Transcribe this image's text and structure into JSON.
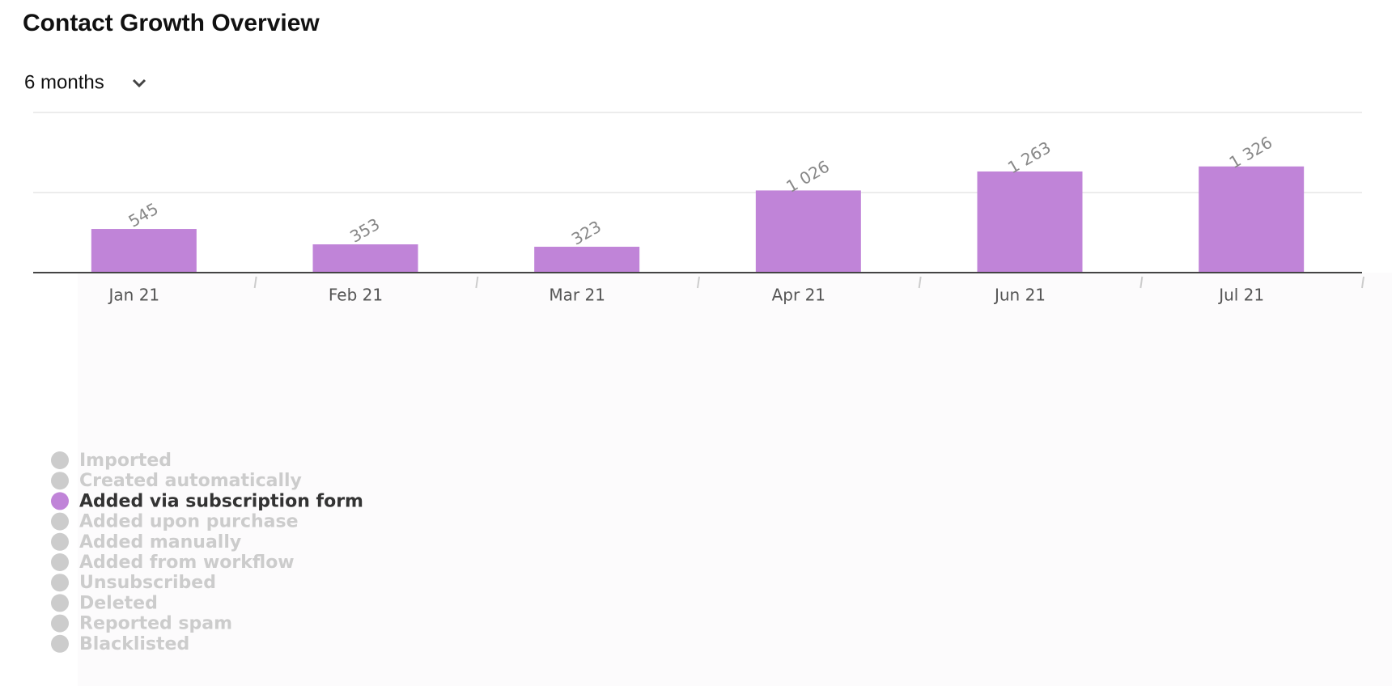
{
  "controls": {
    "period": "6 months"
  },
  "chart_data": {
    "type": "bar",
    "title": "Contact Growth Overview",
    "categories": [
      "Jan 21",
      "Feb 21",
      "Mar 21",
      "Apr 21",
      "Jun 21",
      "Jul 21"
    ],
    "ylim": [
      0,
      2000
    ],
    "yticks": [
      0,
      1000,
      2000
    ],
    "grid": true,
    "series": [
      {
        "name": "Imported",
        "color": "#cccccc",
        "visible": false
      },
      {
        "name": "Created automatically",
        "color": "#cccccc",
        "visible": false
      },
      {
        "name": "Added via subscription form",
        "color": "#c084d8",
        "visible": true,
        "values": [
          545,
          353,
          323,
          1026,
          1263,
          1326
        ],
        "value_labels": [
          "545",
          "353",
          "323",
          "1 026",
          "1 263",
          "1 326"
        ]
      },
      {
        "name": "Added upon purchase",
        "color": "#cccccc",
        "visible": false
      },
      {
        "name": "Added manually",
        "color": "#cccccc",
        "visible": false
      },
      {
        "name": "Added from workflow",
        "color": "#cccccc",
        "visible": false
      },
      {
        "name": "Unsubscribed",
        "color": "#cccccc",
        "visible": false
      },
      {
        "name": "Deleted",
        "color": "#cccccc",
        "visible": false
      },
      {
        "name": "Reported spam",
        "color": "#cccccc",
        "visible": false
      },
      {
        "name": "Blacklisted",
        "color": "#cccccc",
        "visible": false
      }
    ]
  }
}
